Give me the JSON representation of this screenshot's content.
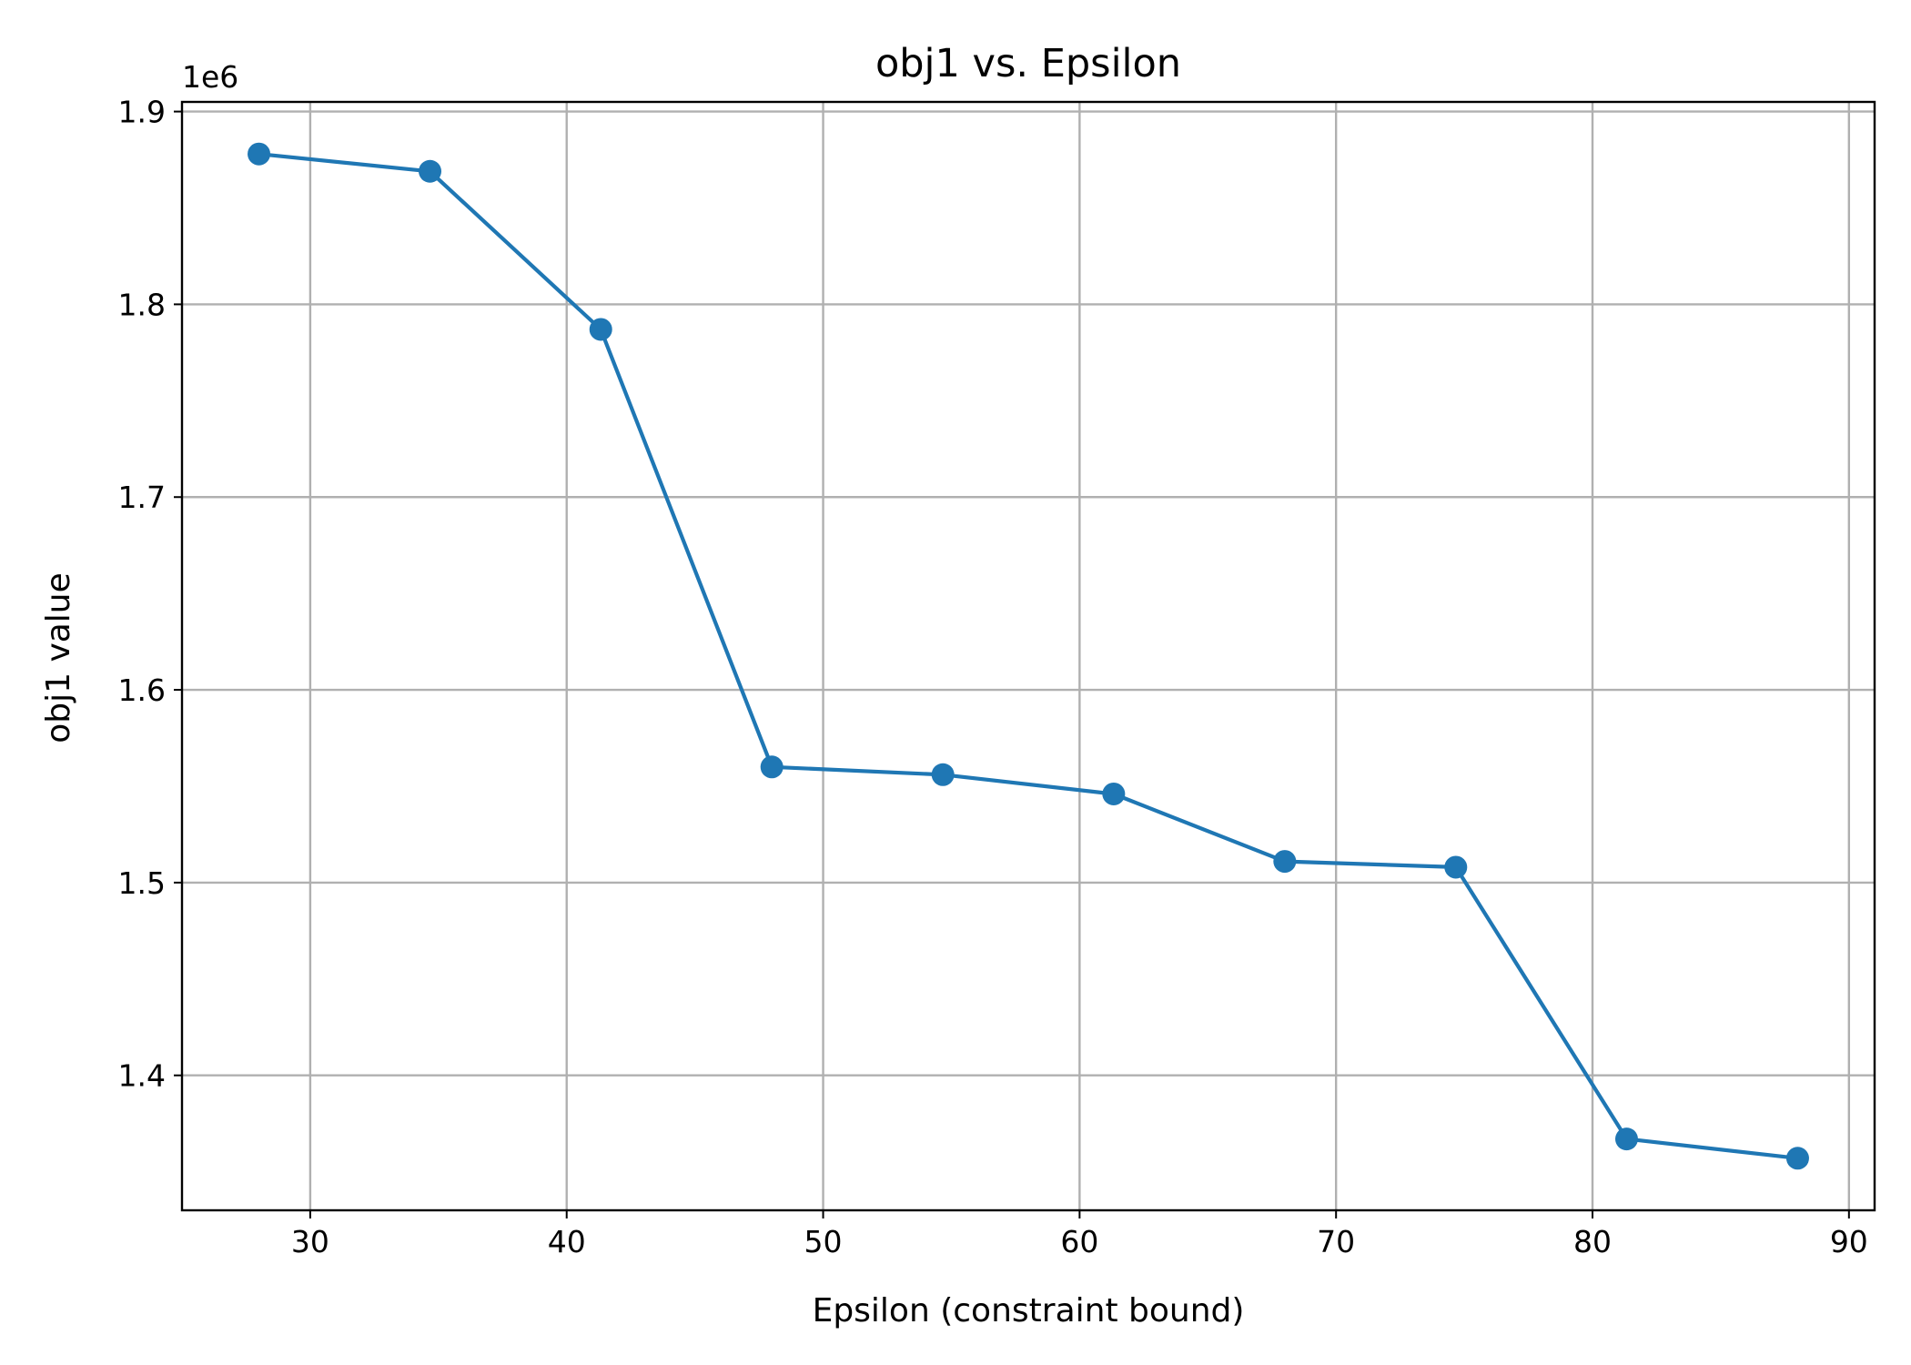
{
  "chart_data": {
    "type": "line",
    "title": "obj1 vs. Epsilon",
    "xlabel": "Epsilon (constraint bound)",
    "ylabel": "obj1 value",
    "offset_text": "1e6",
    "xlim": [
      25,
      91
    ],
    "ylim": [
      1330000,
      1905000
    ],
    "x_ticks": [
      30,
      40,
      50,
      60,
      70,
      80,
      90
    ],
    "x_tick_labels": [
      "30",
      "40",
      "50",
      "60",
      "70",
      "80",
      "90"
    ],
    "y_ticks": [
      1400000,
      1500000,
      1600000,
      1700000,
      1800000,
      1900000
    ],
    "y_tick_labels": [
      "1.4",
      "1.5",
      "1.6",
      "1.7",
      "1.8",
      "1.9"
    ],
    "grid": true,
    "colors": {
      "series": "#1f77b4",
      "grid": "#b0b0b0"
    },
    "series": [
      {
        "x": [
          28.0,
          34.67,
          41.33,
          48.0,
          54.67,
          61.33,
          68.0,
          74.67,
          81.33,
          88.0
        ],
        "y": [
          1878000,
          1869000,
          1787000,
          1560000,
          1556000,
          1546000,
          1511000,
          1508000,
          1367000,
          1357000
        ],
        "marker": "circle"
      }
    ]
  }
}
